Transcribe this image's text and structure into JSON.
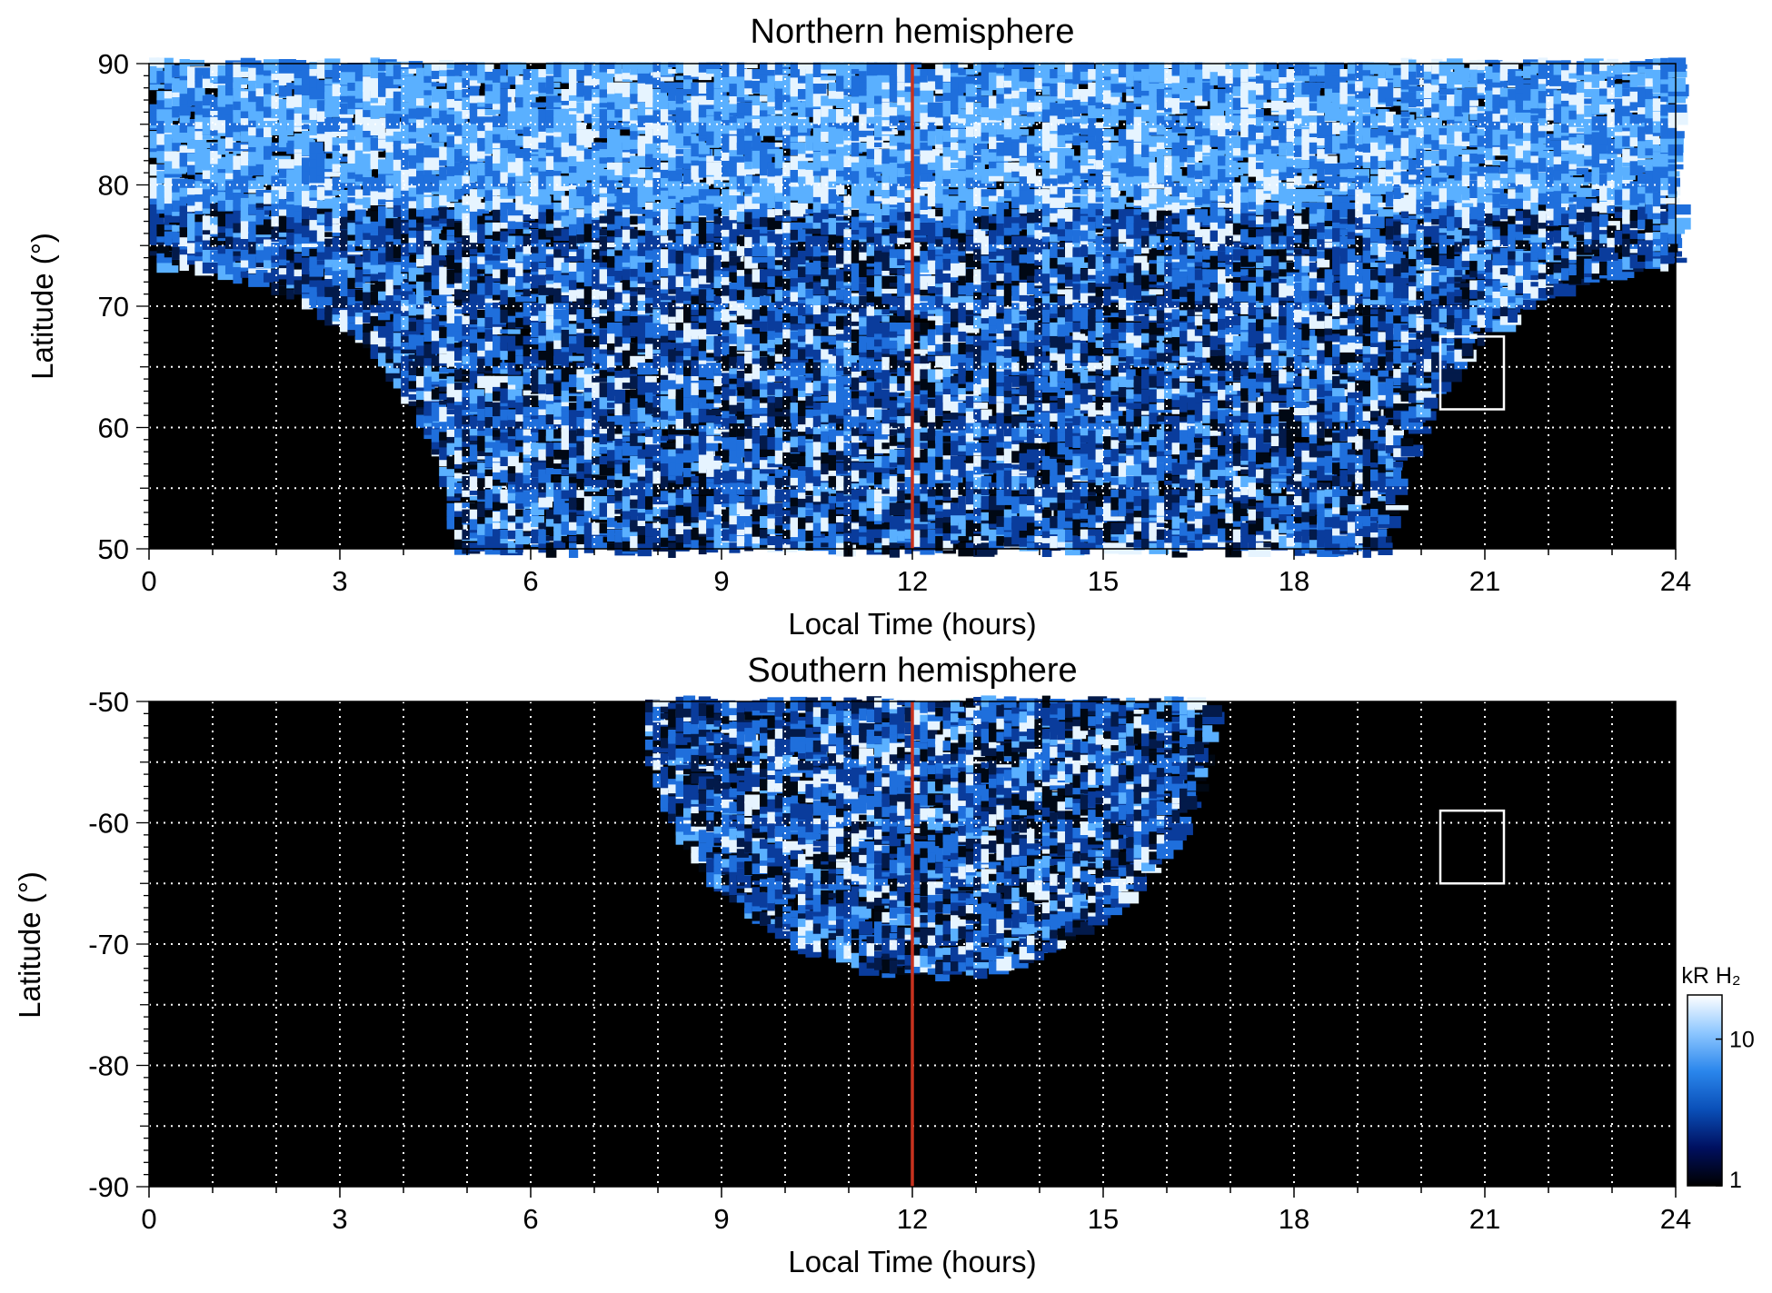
{
  "chart_data": [
    {
      "type": "heatmap",
      "title": "Northern hemisphere",
      "xlabel": "Local Time (hours)",
      "ylabel": "Latitude (°)",
      "xlim": [
        0,
        24
      ],
      "ylim": [
        50,
        90
      ],
      "x_ticks": [
        "0",
        "3",
        "6",
        "9",
        "12",
        "15",
        "18",
        "21",
        "24"
      ],
      "x_tick_values": [
        0,
        3,
        6,
        9,
        12,
        15,
        18,
        21,
        24
      ],
      "y_ticks": [
        "50",
        "60",
        "70",
        "80",
        "90"
      ],
      "y_tick_values": [
        50,
        60,
        70,
        80,
        90
      ],
      "grid": true,
      "reference_line": {
        "x": 12,
        "color": "#c8321e"
      },
      "box": {
        "x": [
          20.3,
          21.3
        ],
        "y": [
          61.5,
          67.5
        ]
      },
      "coverage": "emission fills the polar cap; data boundary at ~73.5° near 0 h and 24 h, dropping to 50° between ~4.7 h and ~19.4 h",
      "background": "#000000"
    },
    {
      "type": "heatmap",
      "title": "Southern hemisphere",
      "xlabel": "Local Time (hours)",
      "ylabel": "Latitude (°)",
      "xlim": [
        0,
        24
      ],
      "ylim": [
        -90,
        -50
      ],
      "x_ticks": [
        "0",
        "3",
        "6",
        "9",
        "12",
        "15",
        "18",
        "21",
        "24"
      ],
      "x_tick_values": [
        0,
        3,
        6,
        9,
        12,
        15,
        18,
        21,
        24
      ],
      "y_ticks": [
        "-50",
        "-60",
        "-70",
        "-80",
        "-90"
      ],
      "y_tick_values": [
        -50,
        -60,
        -70,
        -80,
        -90
      ],
      "grid": true,
      "reference_line": {
        "x": 12,
        "color": "#c8321e"
      },
      "box": {
        "x": [
          20.3,
          21.3
        ],
        "y": [
          -65,
          -59
        ]
      },
      "coverage": "emission only between ~7.7 h and ~16.6 h local time, from -50° down to about -72.5° at 12 h",
      "background": "#000000"
    }
  ],
  "colorbar": {
    "label": "kR H₂",
    "ticks": [
      "10",
      "1"
    ],
    "tick_values": [
      10,
      1
    ],
    "range": [
      1,
      20
    ],
    "scale": "log",
    "colors": [
      "#000000",
      "#001060",
      "#0a4fb8",
      "#2a86ec",
      "#8cc6ff",
      "#ffffff"
    ]
  },
  "colors": {
    "emission_dark": "#0a3c9c",
    "emission_mid": "#1f6fdc",
    "emission_light": "#5ab0ff",
    "emission_bright": "#e6f4ff",
    "noon_line": "#c8321e",
    "grid": "#ffffff",
    "box": "#ffffff"
  }
}
